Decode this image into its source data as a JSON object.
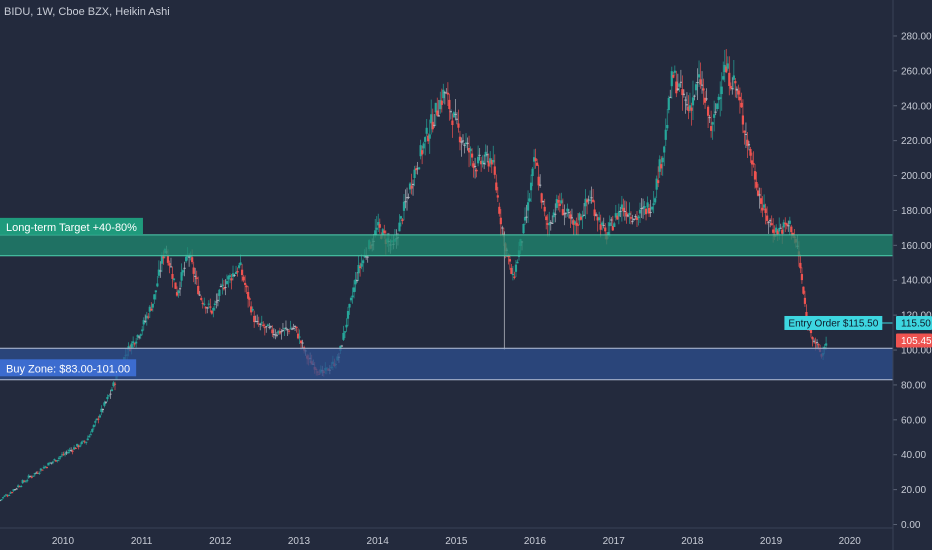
{
  "header": {
    "title": "BIDU, 1W, Cboe BZX, Heikin Ashi"
  },
  "colors": {
    "background": "#232a3d",
    "bull": "#26a69a",
    "bear": "#ef5350",
    "neutral": "#b0b4be",
    "target_zone": "#1f8a70",
    "buy_zone": "#2e4f8f",
    "entry_line": "#3dd6e0",
    "current_price_tag": "#ef5350",
    "axis_text": "#c8ccd6"
  },
  "chart_data": {
    "type": "candlestick",
    "chart_style": "Heikin Ashi",
    "symbol": "BIDU",
    "interval": "1W",
    "exchange": "Cboe BZX",
    "x_ticks": [
      "2010",
      "2011",
      "2012",
      "2013",
      "2014",
      "2015",
      "2016",
      "2017",
      "2018",
      "2019",
      "2020"
    ],
    "y_ticks": [
      "0.00",
      "20.00",
      "40.00",
      "60.00",
      "80.00",
      "100.00",
      "120.00",
      "140.00",
      "160.00",
      "180.00",
      "200.00",
      "220.00",
      "240.00",
      "260.00",
      "280.00"
    ],
    "y_range": [
      -2,
      288
    ],
    "x_range": [
      2009.2,
      2020.55
    ],
    "grid": false,
    "legend": "none",
    "zones": [
      {
        "name": "target",
        "label": "Long-term Target +40-80%",
        "low": 154,
        "high": 166
      },
      {
        "name": "buy",
        "label": "Buy Zone: $83.00-101.00",
        "low": 83,
        "high": 101
      }
    ],
    "entry_order": {
      "label": "Entry Order $115.50",
      "value": 115.5,
      "tag": "115.50",
      "start_year": 2019.17
    },
    "current_price": {
      "value": 105.45,
      "tag": "105.45"
    },
    "price_path": [
      [
        2009.2,
        14
      ],
      [
        2009.6,
        28
      ],
      [
        2010.0,
        40
      ],
      [
        2010.3,
        48
      ],
      [
        2010.6,
        75
      ],
      [
        2010.8,
        98
      ],
      [
        2011.0,
        112
      ],
      [
        2011.15,
        128
      ],
      [
        2011.3,
        160
      ],
      [
        2011.45,
        133
      ],
      [
        2011.6,
        155
      ],
      [
        2011.75,
        130
      ],
      [
        2011.9,
        122
      ],
      [
        2012.05,
        138
      ],
      [
        2012.25,
        148
      ],
      [
        2012.45,
        115
      ],
      [
        2012.7,
        110
      ],
      [
        2012.95,
        113
      ],
      [
        2013.1,
        96
      ],
      [
        2013.3,
        86
      ],
      [
        2013.5,
        95
      ],
      [
        2013.75,
        145
      ],
      [
        2014.0,
        170
      ],
      [
        2014.2,
        158
      ],
      [
        2014.45,
        200
      ],
      [
        2014.7,
        232
      ],
      [
        2014.85,
        248
      ],
      [
        2015.0,
        228
      ],
      [
        2015.25,
        206
      ],
      [
        2015.45,
        210
      ],
      [
        2015.6,
        165
      ],
      [
        2015.72,
        140
      ],
      [
        2015.9,
        178
      ],
      [
        2016.0,
        210
      ],
      [
        2016.15,
        170
      ],
      [
        2016.3,
        185
      ],
      [
        2016.5,
        170
      ],
      [
        2016.7,
        188
      ],
      [
        2016.9,
        165
      ],
      [
        2017.1,
        182
      ],
      [
        2017.3,
        176
      ],
      [
        2017.5,
        185
      ],
      [
        2017.65,
        220
      ],
      [
        2017.75,
        258
      ],
      [
        2017.95,
        238
      ],
      [
        2018.1,
        255
      ],
      [
        2018.25,
        225
      ],
      [
        2018.4,
        262
      ],
      [
        2018.55,
        252
      ],
      [
        2018.7,
        220
      ],
      [
        2018.9,
        180
      ],
      [
        2019.05,
        168
      ],
      [
        2019.25,
        172
      ],
      [
        2019.35,
        155
      ],
      [
        2019.45,
        118
      ],
      [
        2019.55,
        106
      ],
      [
        2019.65,
        96
      ],
      [
        2019.7,
        105.45
      ]
    ]
  }
}
